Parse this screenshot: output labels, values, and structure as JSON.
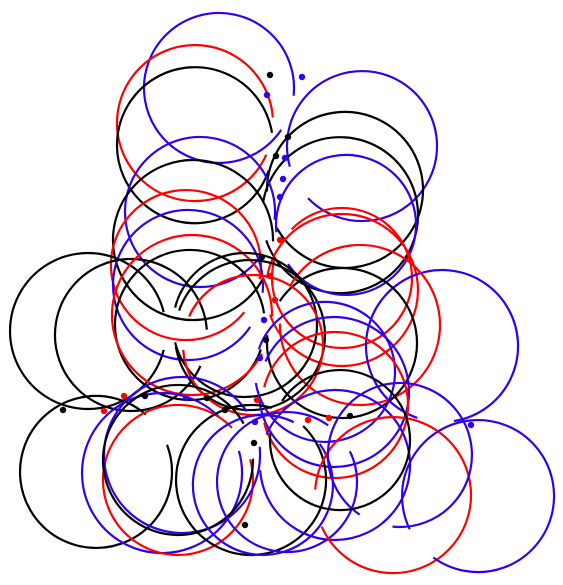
{
  "palette": {
    "black": "#000000",
    "red": "#ff0000",
    "blue": "#3300ee"
  }
}
